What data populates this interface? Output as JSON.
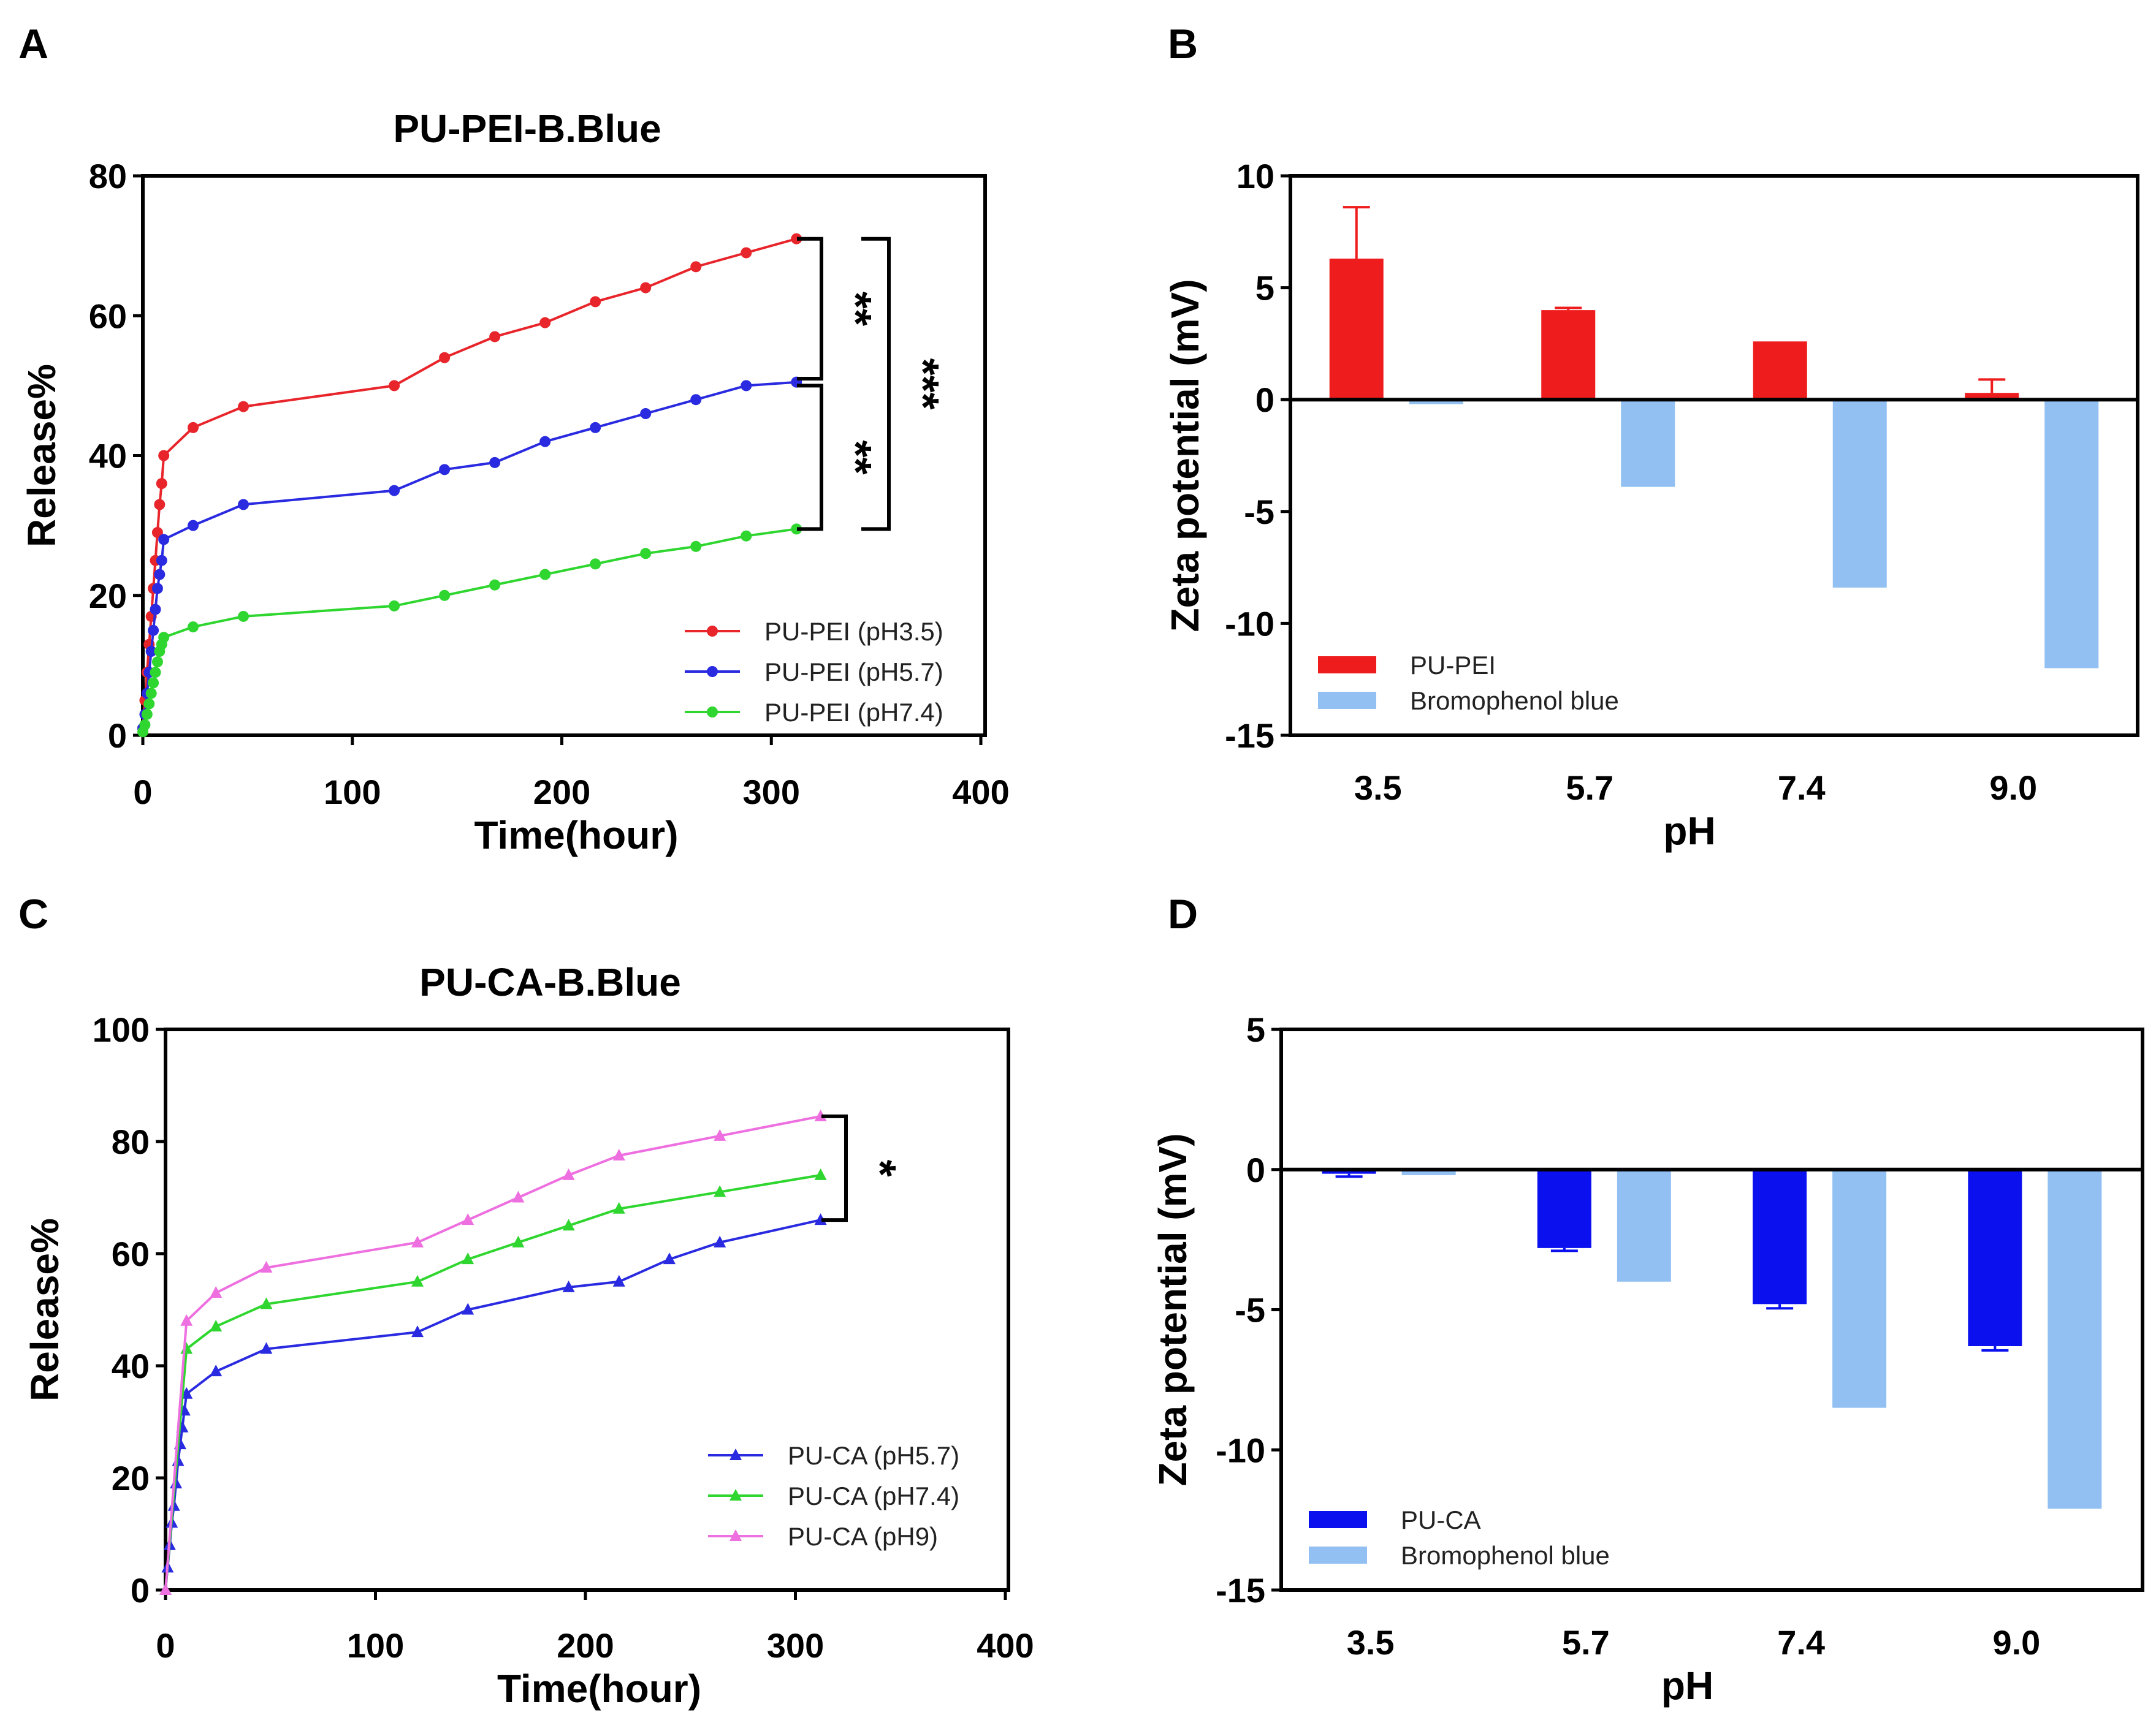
{
  "panel_labels": [
    "A",
    "B",
    "C",
    "D"
  ],
  "chart_data": [
    {
      "panel": "A",
      "type": "line",
      "title": "PU-PEI-B.Blue",
      "xlabel": "Time(hour)",
      "ylabel": "Release%",
      "xlim": [
        0,
        400
      ],
      "ylim": [
        0,
        80
      ],
      "xticks": [
        0,
        100,
        200,
        300,
        400
      ],
      "yticks": [
        0,
        20,
        40,
        60,
        80
      ],
      "marker": "circle",
      "legend_position": "bottom-right",
      "series": [
        {
          "name": "PU-PEI (pH3.5)",
          "color": "#e8252b",
          "x": [
            0,
            1,
            2,
            3,
            4,
            5,
            6,
            7,
            8,
            9,
            10,
            24,
            48,
            120,
            144,
            168,
            192,
            216,
            240,
            264,
            288,
            312
          ],
          "y": [
            1,
            5,
            9,
            13,
            17,
            21,
            25,
            29,
            33,
            36,
            40,
            44,
            47,
            50,
            54,
            57,
            59,
            62,
            64,
            67,
            69,
            71
          ]
        },
        {
          "name": "PU-PEI (pH5.7)",
          "color": "#2a2be0",
          "x": [
            0,
            1,
            2,
            3,
            4,
            5,
            6,
            7,
            8,
            9,
            10,
            24,
            48,
            120,
            144,
            168,
            192,
            216,
            240,
            264,
            288,
            312
          ],
          "y": [
            1,
            3,
            6,
            9,
            12,
            15,
            18,
            21,
            23,
            25,
            28,
            30,
            33,
            35,
            38,
            39,
            42,
            44,
            46,
            48,
            50,
            50.5
          ]
        },
        {
          "name": "PU-PEI (pH7.4)",
          "color": "#2fd62f",
          "x": [
            0,
            1,
            2,
            3,
            4,
            5,
            6,
            7,
            8,
            9,
            10,
            24,
            48,
            120,
            144,
            168,
            192,
            216,
            240,
            264,
            288,
            312
          ],
          "y": [
            0.5,
            1.5,
            3,
            4.5,
            6,
            7.5,
            9,
            10.5,
            12,
            13,
            14,
            15.5,
            17,
            18.5,
            20,
            21.5,
            23,
            24.5,
            26,
            27,
            28.5,
            29.5
          ]
        }
      ],
      "significance": [
        {
          "label": "**",
          "between": [
            71,
            51
          ]
        },
        {
          "label": "**",
          "between": [
            50,
            29.5
          ]
        },
        {
          "label": "***",
          "between": [
            71,
            29.5
          ]
        }
      ]
    },
    {
      "panel": "B",
      "type": "bar",
      "xlabel": "pH",
      "ylabel": "Zeta potential (mV)",
      "ylim": [
        -15,
        10
      ],
      "yticks": [
        -15,
        -10,
        -5,
        0,
        5,
        10
      ],
      "categories": [
        "3.5",
        "5.7",
        "7.4",
        "9.0"
      ],
      "legend_position": "bottom-left",
      "series": [
        {
          "name": "PU-PEI",
          "color": "#ee1c1c",
          "values": [
            6.3,
            4.0,
            2.6,
            0.3
          ],
          "errors": [
            2.3,
            0.1,
            0,
            0.6
          ]
        },
        {
          "name": "Bromophenol blue",
          "color": "#92c0f2",
          "values": [
            -0.2,
            -3.9,
            -8.4,
            -12.0
          ],
          "errors": [
            0,
            0,
            0,
            0
          ]
        }
      ]
    },
    {
      "panel": "C",
      "type": "line",
      "title": "PU-CA-B.Blue",
      "xlabel": "Time(hour)",
      "ylabel": "Release%",
      "xlim": [
        0,
        400
      ],
      "ylim": [
        0,
        100
      ],
      "xticks": [
        0,
        100,
        200,
        300,
        400
      ],
      "yticks": [
        0,
        20,
        40,
        60,
        80,
        100
      ],
      "marker": "triangle",
      "legend_position": "bottom-right",
      "series": [
        {
          "name": "PU-CA (pH5.7)",
          "color": "#2a2be0",
          "x": [
            0,
            1,
            2,
            3,
            4,
            5,
            6,
            7,
            8,
            9,
            10,
            24,
            48,
            120,
            144,
            192,
            216,
            240,
            264,
            312
          ],
          "y": [
            0,
            4,
            8,
            12,
            15,
            19,
            23,
            26,
            29,
            32,
            35,
            39,
            43,
            46,
            50,
            54,
            55,
            59,
            62,
            66
          ]
        },
        {
          "name": "PU-CA (pH7.4)",
          "color": "#2fd62f",
          "x": [
            0,
            10,
            24,
            48,
            120,
            144,
            168,
            192,
            216,
            264,
            312
          ],
          "y": [
            0,
            43,
            47,
            51,
            55,
            59,
            62,
            65,
            68,
            71,
            74
          ]
        },
        {
          "name": "PU-CA (pH9)",
          "color": "#ee6fe0",
          "x": [
            0,
            10,
            24,
            48,
            120,
            144,
            168,
            192,
            216,
            264,
            312
          ],
          "y": [
            0,
            48,
            53,
            57.5,
            62,
            66,
            70,
            74,
            77.5,
            81,
            84.5
          ]
        }
      ],
      "significance": [
        {
          "label": "*",
          "between": [
            84.5,
            66
          ]
        }
      ]
    },
    {
      "panel": "D",
      "type": "bar",
      "xlabel": "pH",
      "ylabel": "Zeta potential (mV)",
      "ylim": [
        -15,
        5
      ],
      "yticks": [
        -15,
        -10,
        -5,
        0,
        5
      ],
      "categories": [
        "3.5",
        "5.7",
        "7.4",
        "9.0"
      ],
      "legend_position": "bottom-left",
      "series": [
        {
          "name": "PU-CA",
          "color": "#0a10ee",
          "values": [
            -0.15,
            -2.8,
            -4.8,
            -6.3
          ],
          "errors": [
            0.1,
            0.1,
            0.15,
            0.15
          ]
        },
        {
          "name": "Bromophenol blue",
          "color": "#92c0f2",
          "values": [
            -0.2,
            -4.0,
            -8.5,
            -12.1
          ],
          "errors": [
            0,
            0,
            0,
            0
          ]
        }
      ]
    }
  ]
}
